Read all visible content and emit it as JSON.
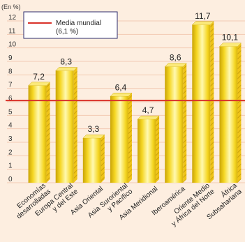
{
  "chart_data": {
    "type": "bar",
    "unit_label": "(En %)",
    "categories": [
      [
        "Economías",
        "desarrolladas"
      ],
      [
        "Europa Central",
        "y del Este"
      ],
      [
        "Asia Oriental"
      ],
      [
        "Asia Suroriental",
        "y Pacífico"
      ],
      [
        "Asia Meridional"
      ],
      [
        "Iberoamérica"
      ],
      [
        "Oriente Medio",
        "y África del Norte"
      ],
      [
        "África",
        "Subsahariana"
      ]
    ],
    "values": [
      7.2,
      8.3,
      3.3,
      6.4,
      4.7,
      8.6,
      11.7,
      10.1
    ],
    "value_labels": [
      "7,2",
      "8,3",
      "3,3",
      "6,4",
      "4,7",
      "8,6",
      "11,7",
      "10,1"
    ],
    "ylim": [
      0,
      12
    ],
    "yticks": [
      0,
      1,
      2,
      3,
      4,
      5,
      6,
      7,
      8,
      9,
      10,
      11,
      12
    ],
    "grid": true,
    "reference_line": {
      "value": 6.1,
      "label_line1": "Media mundial",
      "label_line2": "(6,1 %)",
      "color": "#d9322a"
    },
    "legend_position": "top-left",
    "colors": {
      "background": "#fdeee0",
      "bar_light": "#fff9b0",
      "bar_mid": "#f5d622",
      "bar_dark": "#c9a407",
      "bar_top": "#fbe97a",
      "grid": "#f2c9b3"
    }
  }
}
